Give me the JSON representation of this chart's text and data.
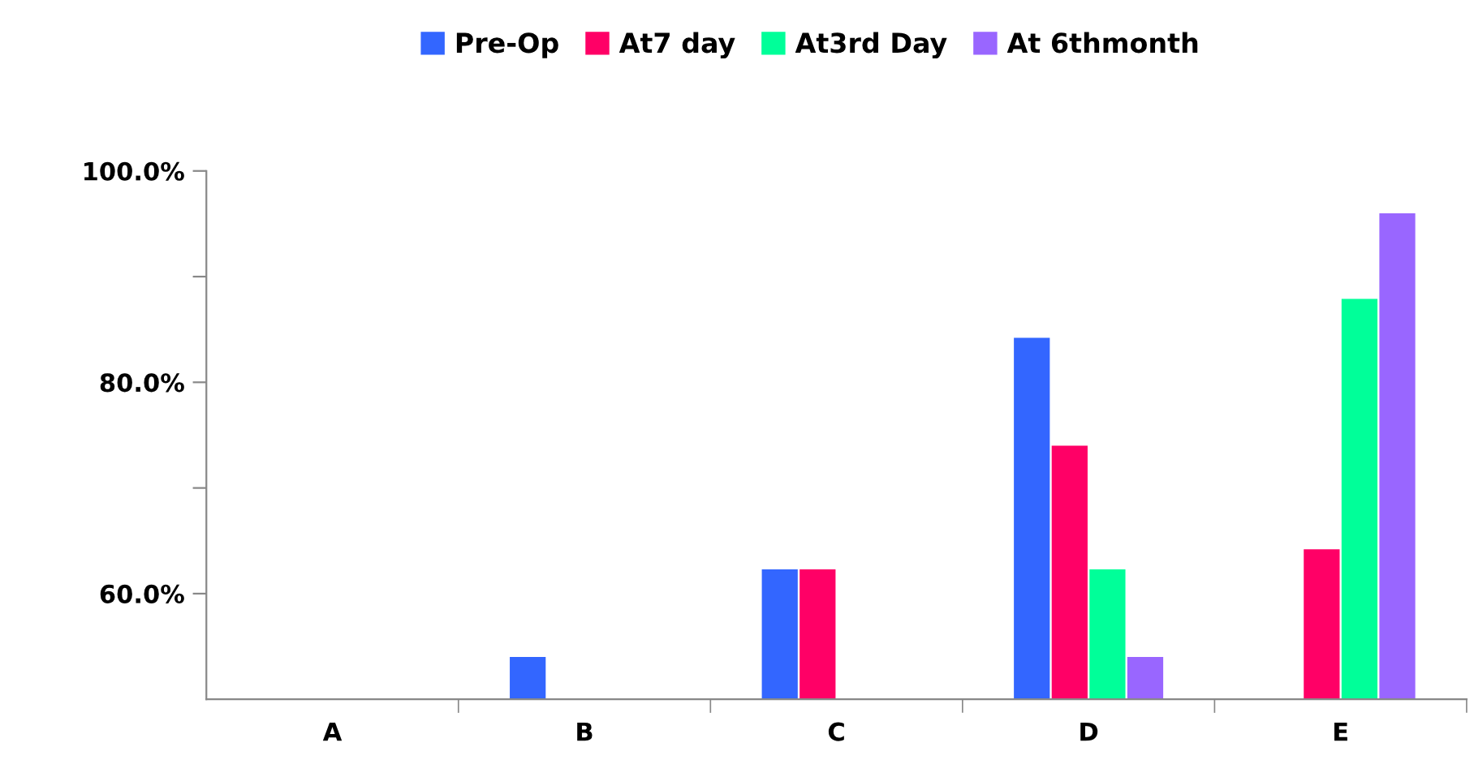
{
  "chart_data": {
    "type": "bar",
    "categories": [
      "A",
      "B",
      "C",
      "D",
      "E"
    ],
    "series": [
      {
        "name": "Pre-Op",
        "color": "#3366ff",
        "values": [
          null,
          54.0,
          62.3,
          84.2,
          null
        ]
      },
      {
        "name": "At7 day",
        "color": "#ff0066",
        "values": [
          null,
          null,
          62.3,
          74.0,
          64.2
        ]
      },
      {
        "name": "At3rd Day",
        "color": "#00ff99",
        "values": [
          null,
          null,
          null,
          62.3,
          87.9
        ]
      },
      {
        "name": "At 6thmonth",
        "color": "#9966ff",
        "values": [
          null,
          null,
          null,
          54.0,
          96.0
        ]
      }
    ],
    "ylim": [
      50,
      100
    ],
    "yticks": [
      {
        "value": 60,
        "label": "60.0%"
      },
      {
        "value": 70,
        "label": null
      },
      {
        "value": 80,
        "label": "80.0%"
      },
      {
        "value": 90,
        "label": null
      },
      {
        "value": 100,
        "label": "100.0%"
      }
    ],
    "grid": false,
    "legend": "top"
  }
}
